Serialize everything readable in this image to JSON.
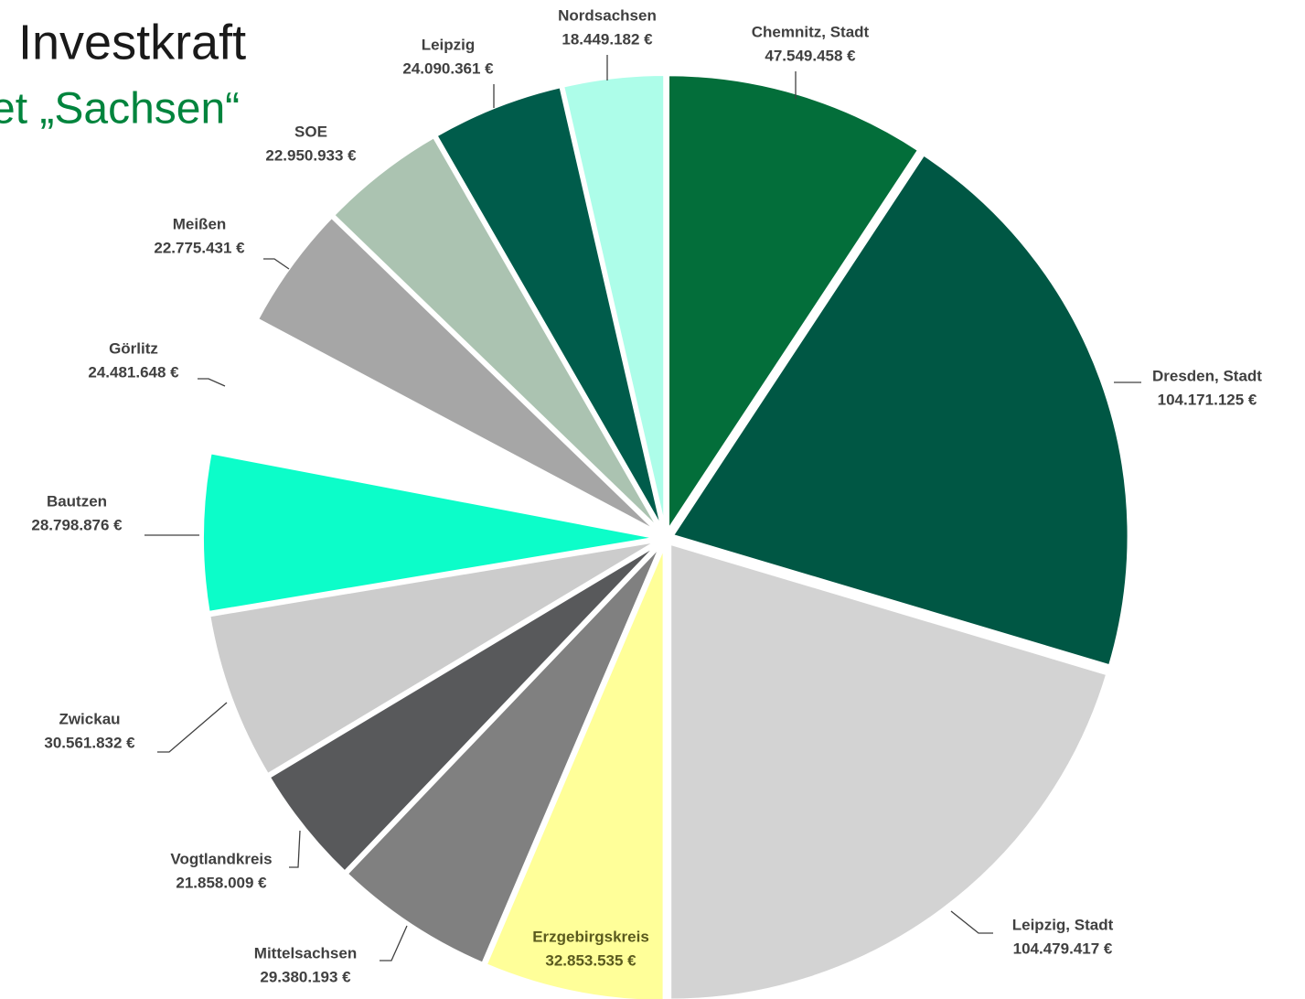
{
  "chart_data": {
    "type": "pie",
    "title": "Investkraft",
    "subtitle": "et „Sachsen“",
    "categories": [
      "Chemnitz, Stadt",
      "Dresden, Stadt",
      "Leipzig, Stadt",
      "Erzgebirgskreis",
      "Mittelsachsen",
      "Vogtlandkreis",
      "Zwickau",
      "Bautzen",
      "Görlitz",
      "Meißen",
      "SOE",
      "Leipzig",
      "Nordsachsen"
    ],
    "values": [
      47549458,
      104171125,
      104479417,
      32853535,
      29380193,
      21858009,
      30561832,
      28798876,
      24481648,
      22775431,
      22950933,
      24090361,
      18449182
    ],
    "value_labels": [
      "47.549.458 €",
      "104.171.125 €",
      "104.479.417 €",
      "32.853.535 €",
      "29.380.193 €",
      "21.858.009 €",
      "30.561.832 €",
      "28.798.876 €",
      "24.481.648 €",
      "22.775.431 €",
      "22.950.933 €",
      "24.090.361 €",
      "18.449.182 €"
    ],
    "colors": [
      "#036e3a",
      "#005744",
      "#d3d3d3",
      "#ffff99",
      "#808080",
      "#58595b",
      "#cccccc",
      "#0cfdc9",
      "#ffffff",
      "#a6a6a6",
      "#abc3b1",
      "#005c4b",
      "#adfde9"
    ]
  }
}
